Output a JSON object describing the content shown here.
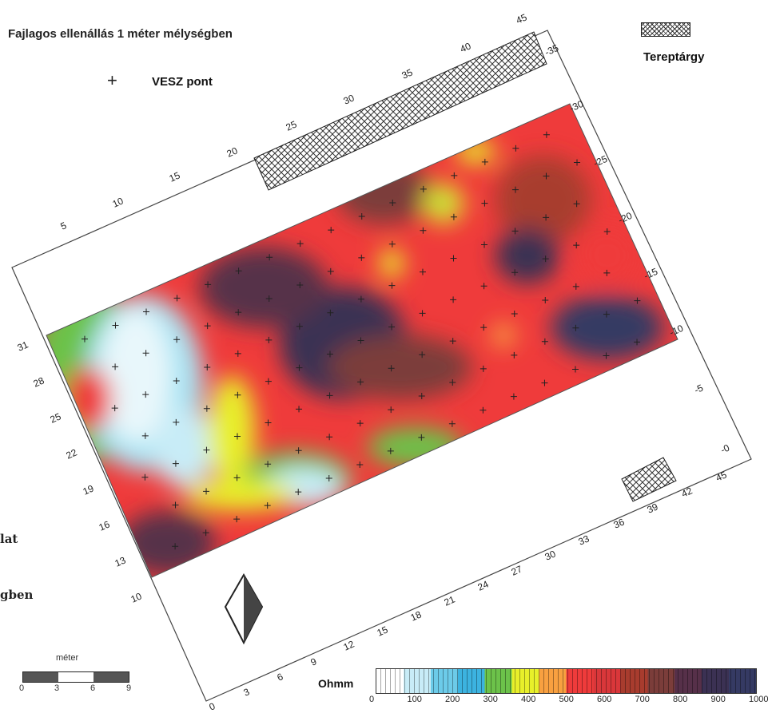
{
  "title": "Fajlagos ellenállás 1 méter mélységben",
  "legend": {
    "point_symbol": "+",
    "point_label": "VESZ pont",
    "object_label": "Tereptárgy"
  },
  "cut_text": [
    "lat",
    "gben"
  ],
  "scale": {
    "label": "méter",
    "ticks": [
      "0",
      "3",
      "6",
      "9"
    ]
  },
  "colorbar": {
    "unit": "Ohmm",
    "ticks": [
      "0",
      "100",
      "200",
      "300",
      "400",
      "500",
      "600",
      "700",
      "800",
      "900",
      "1000"
    ],
    "colors": [
      "#ffffff",
      "#c8ecf7",
      "#6ccbe9",
      "#3cb3e0",
      "#6cc24a",
      "#e8ef2a",
      "#f8a040",
      "#ef3b3b",
      "#d9373a",
      "#a83c2e",
      "#7b3d3a",
      "#563049",
      "#3b3153",
      "#353a63"
    ]
  },
  "axes": {
    "top": [
      "5",
      "10",
      "15",
      "20",
      "25",
      "30",
      "35",
      "40",
      "45"
    ],
    "right_top": [
      "-35",
      "-30",
      "-25",
      "-20",
      "-15",
      "-10",
      "-5",
      "-0"
    ],
    "bottom": [
      "0",
      "3",
      "6",
      "9",
      "12",
      "15",
      "18",
      "21",
      "24",
      "27",
      "30",
      "33",
      "36",
      "39",
      "42",
      "45"
    ],
    "left": [
      "31",
      "28",
      "25",
      "22",
      "19",
      "16",
      "13",
      "10"
    ]
  }
}
